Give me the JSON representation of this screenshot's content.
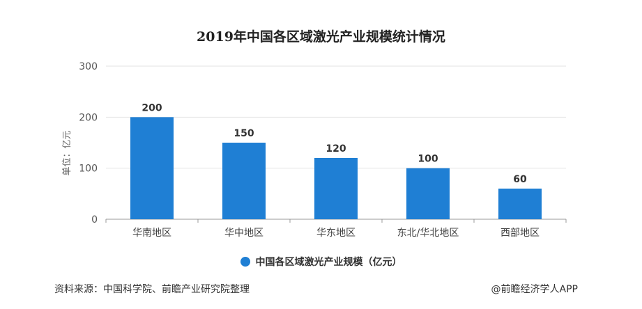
{
  "chart_data": {
    "type": "bar",
    "title": "2019年中国各区域激光产业规模统计情况",
    "ylabel": "单位：亿元",
    "xlabel": "",
    "categories": [
      "华南地区",
      "华中地区",
      "华东地区",
      "东北/华北地区",
      "西部地区"
    ],
    "values": [
      200,
      150,
      120,
      100,
      60
    ],
    "ylim": [
      0,
      300
    ],
    "yticks": [
      0,
      100,
      200,
      300
    ],
    "grid": true,
    "legend_position": "bottom",
    "series": [
      {
        "name": "中国各区域激光产业规模（亿元）",
        "values": [
          200,
          150,
          120,
          100,
          60
        ]
      }
    ],
    "bar_color": "#1f7fd4"
  },
  "footer": {
    "source": "资料来源：中国科学院、前瞻产业研究院整理",
    "credit": "@前瞻经济学人APP"
  }
}
